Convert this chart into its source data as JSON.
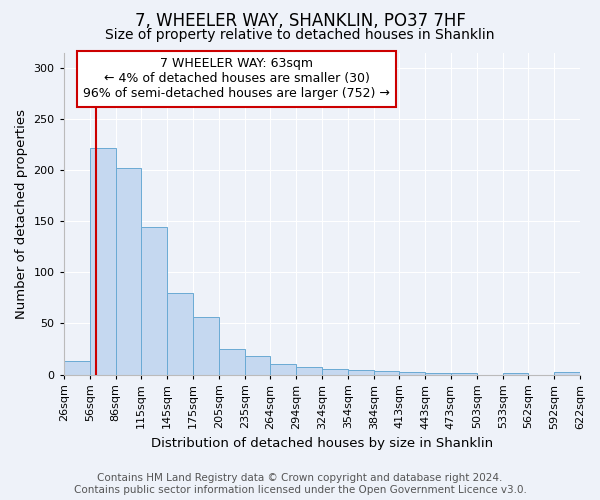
{
  "title": "7, WHEELER WAY, SHANKLIN, PO37 7HF",
  "subtitle": "Size of property relative to detached houses in Shanklin",
  "xlabel": "Distribution of detached houses by size in Shanklin",
  "ylabel": "Number of detached properties",
  "bar_values": [
    13,
    222,
    202,
    144,
    80,
    56,
    25,
    18,
    10,
    7,
    5,
    4,
    3,
    2,
    1,
    1,
    0,
    1,
    0,
    2
  ],
  "bin_edges": [
    26,
    56,
    86,
    115,
    145,
    175,
    205,
    235,
    264,
    294,
    324,
    354,
    384,
    413,
    443,
    473,
    503,
    533,
    562,
    592,
    622
  ],
  "bin_labels": [
    "26sqm",
    "56sqm",
    "86sqm",
    "115sqm",
    "145sqm",
    "175sqm",
    "205sqm",
    "235sqm",
    "264sqm",
    "294sqm",
    "324sqm",
    "354sqm",
    "384sqm",
    "413sqm",
    "443sqm",
    "473sqm",
    "503sqm",
    "533sqm",
    "562sqm",
    "592sqm",
    "622sqm"
  ],
  "bar_color": "#c5d8f0",
  "bar_edge_color": "#6aaad4",
  "vline_x": 63,
  "vline_color": "#cc0000",
  "annotation_text": "7 WHEELER WAY: 63sqm\n← 4% of detached houses are smaller (30)\n96% of semi-detached houses are larger (752) →",
  "annotation_box_color": "#ffffff",
  "annotation_box_edge": "#cc0000",
  "ylim": [
    0,
    315
  ],
  "yticks": [
    0,
    50,
    100,
    150,
    200,
    250,
    300
  ],
  "footer_line1": "Contains HM Land Registry data © Crown copyright and database right 2024.",
  "footer_line2": "Contains public sector information licensed under the Open Government Licence v3.0.",
  "bg_color": "#eef2f9",
  "plot_bg_color": "#eef2f9",
  "title_fontsize": 12,
  "subtitle_fontsize": 10,
  "axis_label_fontsize": 9.5,
  "tick_fontsize": 8,
  "footer_fontsize": 7.5,
  "annotation_fontsize": 9
}
